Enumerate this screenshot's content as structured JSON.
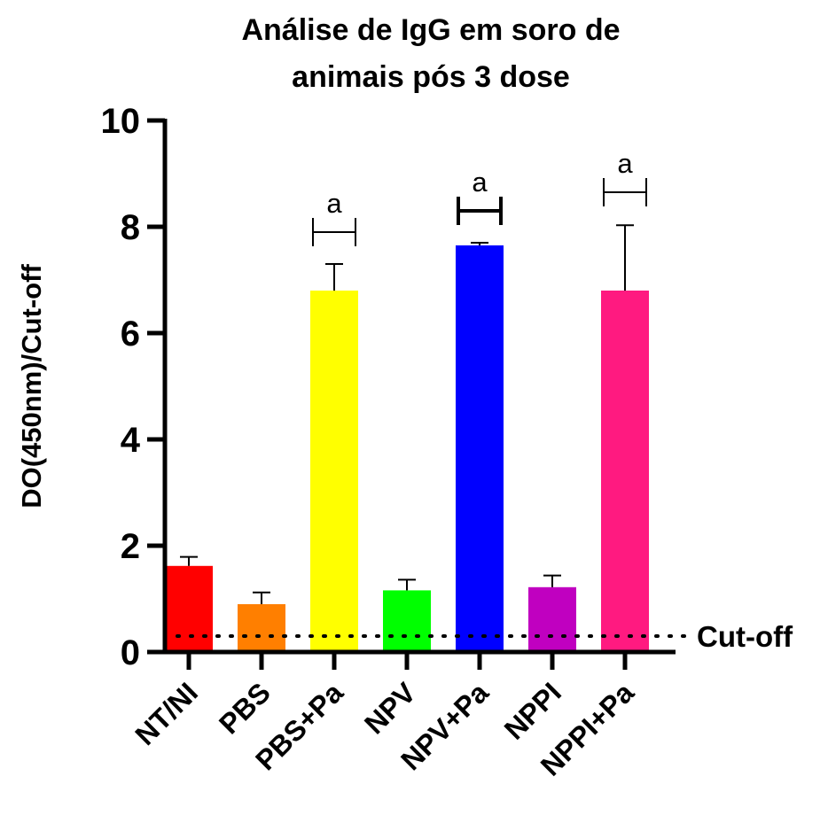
{
  "chart_data": {
    "type": "bar",
    "title_lines": [
      "Análise de IgG em soro de",
      "animais pós 3 dose"
    ],
    "ylabel": "DO(450nm)/Cut-off",
    "xlabel": "",
    "ylim": [
      0,
      10
    ],
    "yticks": [
      0,
      2,
      4,
      6,
      8,
      10
    ],
    "categories": [
      "NT/NI",
      "PBS",
      "PBS+Pa",
      "NPV",
      "NPV+Pa",
      "NPPI",
      "NPPI+Pa"
    ],
    "values": [
      1.62,
      0.9,
      6.8,
      1.16,
      7.65,
      1.22,
      6.8
    ],
    "error_upper": [
      0.17,
      0.22,
      0.5,
      0.2,
      0.05,
      0.22,
      1.23
    ],
    "colors": [
      "#ff0000",
      "#ff7f00",
      "#ffff00",
      "#00ff00",
      "#0000ff",
      "#c000c0",
      "#ff1a80"
    ],
    "significance": [
      {
        "category": "PBS+Pa",
        "label": "a",
        "bracket_y": 7.9
      },
      {
        "category": "NPV+Pa",
        "label": "a",
        "bracket_y": 8.3
      },
      {
        "category": "NPPI+Pa",
        "label": "a",
        "bracket_y": 8.65
      }
    ],
    "cutoff": {
      "value": 0.3,
      "label": "Cut-off"
    },
    "grid": false,
    "legend": "none"
  }
}
